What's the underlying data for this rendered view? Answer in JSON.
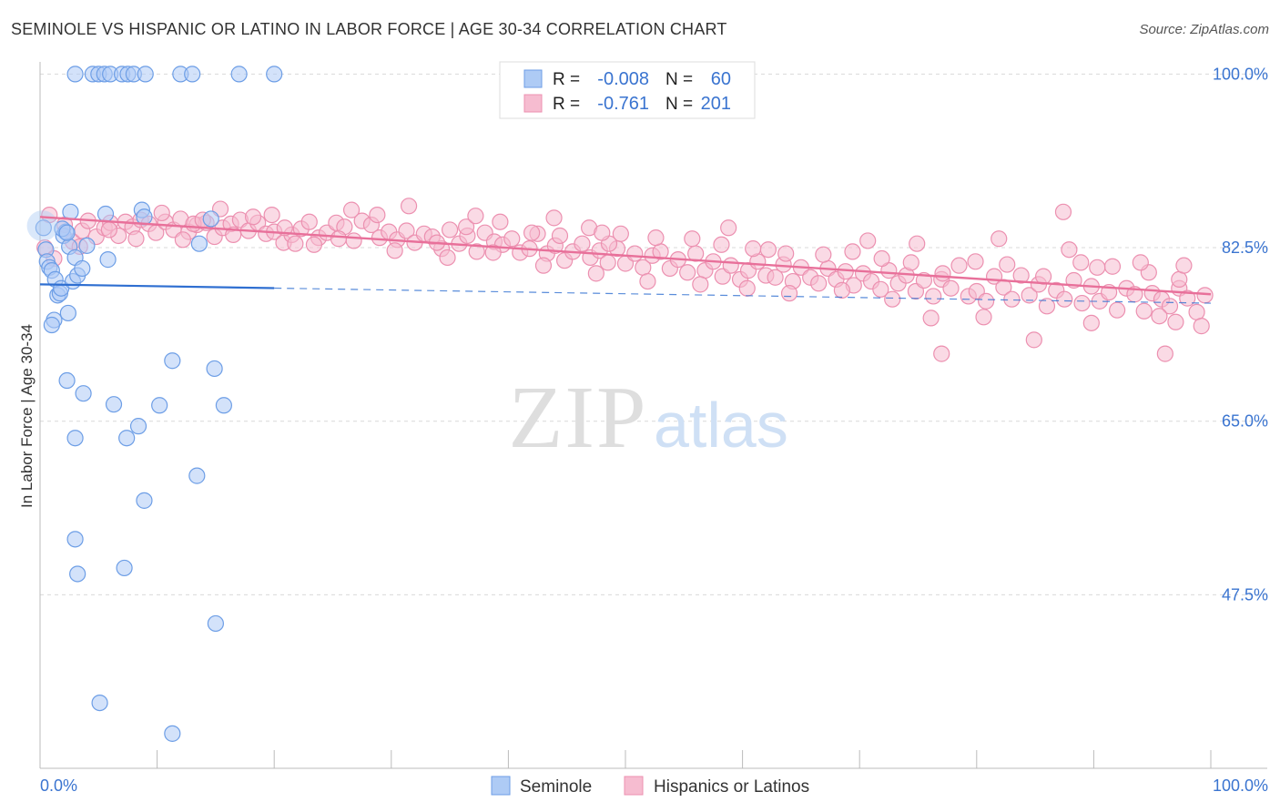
{
  "title": "SEMINOLE VS HISPANIC OR LATINO IN LABOR FORCE | AGE 30-34 CORRELATION CHART",
  "source": "Source: ZipAtlas.com",
  "watermark": {
    "left": "ZIP",
    "right": "atlas"
  },
  "colors": {
    "seminole_fill": "#aecbf5",
    "seminole_stroke": "#6d9ee6",
    "seminole_line": "#2f6fd1",
    "hispanic_fill": "#f6bcd0",
    "hispanic_stroke": "#ec90b0",
    "hispanic_line": "#e8709a",
    "tick_text": "#3a74d0",
    "grid": "#d9d9d9"
  },
  "legend": [
    {
      "r_label": "R =",
      "r_value": "-0.008",
      "n_label": "N =",
      "n_value": "60"
    },
    {
      "r_label": "R =",
      "r_value": "-0.761",
      "n_label": "N =",
      "n_value": "201"
    }
  ],
  "chart_data": {
    "type": "scatter",
    "title": "SEMINOLE VS HISPANIC OR LATINO IN LABOR FORCE | AGE 30-34 CORRELATION CHART",
    "xlabel": "",
    "ylabel": "In Labor Force | Age 30-34",
    "xlim": [
      0,
      100
    ],
    "ylim": [
      30,
      101
    ],
    "x_tick_labels": [
      "0.0%",
      "100.0%"
    ],
    "y_ticks": [
      47.5,
      65.0,
      82.5,
      100.0
    ],
    "y_tick_labels": [
      "47.5%",
      "65.0%",
      "82.5%",
      "100.0%"
    ],
    "grid": true,
    "legend_position": "bottom",
    "series": [
      {
        "name": "Seminole",
        "r": -0.008,
        "n": 60,
        "trend": {
          "x": [
            0,
            100
          ],
          "y": [
            78.8,
            76.9
          ],
          "solid_to_x": 20
        },
        "points": [
          [
            3,
            100
          ],
          [
            4.5,
            100
          ],
          [
            5,
            100
          ],
          [
            5.5,
            100
          ],
          [
            6,
            100
          ],
          [
            7,
            100
          ],
          [
            7.5,
            100
          ],
          [
            8,
            100
          ],
          [
            9,
            100
          ],
          [
            12,
            100
          ],
          [
            13,
            100
          ],
          [
            17,
            100
          ],
          [
            20,
            100
          ],
          [
            0.3,
            84.5
          ],
          [
            0.5,
            82.3
          ],
          [
            0.6,
            81.1
          ],
          [
            0.8,
            80.5
          ],
          [
            1,
            80.2
          ],
          [
            1.3,
            79.3
          ],
          [
            1.5,
            77.7
          ],
          [
            1.7,
            77.9
          ],
          [
            1.8,
            78.4
          ],
          [
            2,
            83.7
          ],
          [
            2.2,
            84.1
          ],
          [
            2.5,
            82.6
          ],
          [
            2.8,
            79.1
          ],
          [
            3,
            81.5
          ],
          [
            3.2,
            79.7
          ],
          [
            3.6,
            80.4
          ],
          [
            4,
            82.7
          ],
          [
            2.6,
            86.1
          ],
          [
            5.6,
            85.9
          ],
          [
            8.7,
            86.3
          ],
          [
            8.9,
            85.6
          ],
          [
            14.6,
            85.4
          ],
          [
            1.9,
            84.4
          ],
          [
            2.3,
            84.0
          ],
          [
            13.6,
            82.9
          ],
          [
            5.8,
            81.3
          ],
          [
            1.2,
            75.2
          ],
          [
            2.4,
            75.9
          ],
          [
            1.0,
            74.7
          ],
          [
            11.3,
            71.1
          ],
          [
            14.9,
            70.3
          ],
          [
            2.3,
            69.1
          ],
          [
            3.7,
            67.8
          ],
          [
            6.3,
            66.7
          ],
          [
            10.2,
            66.6
          ],
          [
            15.7,
            66.6
          ],
          [
            8.4,
            64.5
          ],
          [
            3.0,
            63.3
          ],
          [
            7.4,
            63.3
          ],
          [
            13.4,
            59.5
          ],
          [
            8.9,
            57.0
          ],
          [
            3.0,
            53.1
          ],
          [
            7.2,
            50.2
          ],
          [
            3.2,
            49.6
          ],
          [
            15.0,
            44.6
          ],
          [
            5.1,
            36.6
          ],
          [
            11.3,
            33.5
          ]
        ]
      },
      {
        "name": "Hispanics or Latinos",
        "r": -0.761,
        "n": 201,
        "trend": {
          "x": [
            0,
            100
          ],
          "y": [
            85.6,
            77.8
          ]
        },
        "points": [
          [
            0.4,
            82.5
          ],
          [
            1.2,
            81.4
          ],
          [
            2.1,
            84.8
          ],
          [
            2.8,
            83.1
          ],
          [
            3.6,
            84.2
          ],
          [
            4.1,
            85.2
          ],
          [
            4.8,
            83.6
          ],
          [
            5.5,
            84.5
          ],
          [
            6.0,
            85.0
          ],
          [
            6.7,
            83.7
          ],
          [
            7.3,
            85.1
          ],
          [
            7.9,
            84.6
          ],
          [
            8.6,
            85.3
          ],
          [
            9.3,
            84.9
          ],
          [
            9.9,
            84.0
          ],
          [
            10.7,
            85.1
          ],
          [
            11.4,
            84.3
          ],
          [
            12.0,
            85.4
          ],
          [
            12.7,
            84.1
          ],
          [
            13.4,
            84.8
          ],
          [
            14.2,
            85.0
          ],
          [
            14.9,
            83.6
          ],
          [
            15.6,
            84.5
          ],
          [
            16.3,
            84.9
          ],
          [
            17.1,
            85.3
          ],
          [
            17.8,
            84.2
          ],
          [
            18.6,
            85.0
          ],
          [
            19.3,
            83.9
          ],
          [
            20.0,
            84.1
          ],
          [
            20.8,
            83.0
          ],
          [
            21.5,
            83.8
          ],
          [
            22.3,
            84.4
          ],
          [
            23.0,
            85.1
          ],
          [
            23.8,
            83.5
          ],
          [
            24.5,
            84.0
          ],
          [
            25.3,
            85.0
          ],
          [
            26.0,
            84.6
          ],
          [
            26.8,
            83.2
          ],
          [
            27.5,
            85.2
          ],
          [
            28.3,
            84.8
          ],
          [
            29.0,
            83.5
          ],
          [
            29.8,
            84.1
          ],
          [
            30.5,
            83.3
          ],
          [
            31.3,
            84.2
          ],
          [
            32.0,
            83.0
          ],
          [
            32.8,
            83.9
          ],
          [
            33.5,
            83.6
          ],
          [
            34.3,
            82.4
          ],
          [
            35.0,
            84.3
          ],
          [
            35.8,
            82.9
          ],
          [
            36.5,
            83.7
          ],
          [
            37.3,
            82.1
          ],
          [
            38.0,
            84.0
          ],
          [
            38.8,
            83.1
          ],
          [
            39.5,
            82.8
          ],
          [
            40.3,
            83.4
          ],
          [
            41.0,
            82.0
          ],
          [
            41.8,
            82.4
          ],
          [
            42.5,
            83.9
          ],
          [
            43.3,
            81.9
          ],
          [
            44.0,
            82.7
          ],
          [
            44.8,
            81.2
          ],
          [
            45.5,
            82.1
          ],
          [
            46.3,
            82.9
          ],
          [
            47.0,
            81.5
          ],
          [
            47.8,
            82.2
          ],
          [
            48.5,
            81.0
          ],
          [
            49.3,
            82.4
          ],
          [
            50.0,
            80.9
          ],
          [
            50.8,
            81.9
          ],
          [
            51.5,
            80.5
          ],
          [
            52.3,
            81.7
          ],
          [
            53.0,
            82.1
          ],
          [
            53.8,
            80.4
          ],
          [
            54.5,
            81.3
          ],
          [
            55.3,
            80.0
          ],
          [
            56.0,
            81.9
          ],
          [
            56.8,
            80.2
          ],
          [
            57.5,
            81.1
          ],
          [
            58.3,
            79.6
          ],
          [
            59.0,
            80.7
          ],
          [
            59.8,
            79.3
          ],
          [
            60.5,
            80.2
          ],
          [
            61.3,
            81.1
          ],
          [
            62.0,
            79.7
          ],
          [
            62.8,
            79.5
          ],
          [
            63.5,
            80.8
          ],
          [
            64.3,
            79.1
          ],
          [
            65.0,
            80.5
          ],
          [
            65.8,
            79.5
          ],
          [
            66.5,
            78.9
          ],
          [
            67.3,
            80.4
          ],
          [
            68.0,
            79.3
          ],
          [
            68.8,
            80.1
          ],
          [
            69.5,
            78.7
          ],
          [
            70.3,
            79.9
          ],
          [
            71.0,
            79.1
          ],
          [
            71.8,
            78.3
          ],
          [
            72.5,
            80.2
          ],
          [
            73.3,
            78.9
          ],
          [
            74.0,
            79.7
          ],
          [
            74.8,
            78.1
          ],
          [
            75.5,
            79.2
          ],
          [
            76.3,
            77.6
          ],
          [
            77.0,
            79.3
          ],
          [
            77.8,
            78.4
          ],
          [
            78.5,
            80.7
          ],
          [
            79.3,
            77.6
          ],
          [
            80.0,
            78.1
          ],
          [
            80.8,
            77.1
          ],
          [
            81.5,
            79.6
          ],
          [
            82.3,
            78.5
          ],
          [
            83.0,
            77.3
          ],
          [
            83.8,
            79.7
          ],
          [
            84.5,
            77.7
          ],
          [
            85.3,
            78.8
          ],
          [
            86.0,
            76.6
          ],
          [
            86.8,
            78.2
          ],
          [
            87.5,
            77.3
          ],
          [
            88.3,
            79.2
          ],
          [
            89.0,
            76.9
          ],
          [
            89.8,
            78.6
          ],
          [
            90.5,
            77.1
          ],
          [
            91.3,
            78.0
          ],
          [
            92.0,
            76.2
          ],
          [
            92.8,
            78.4
          ],
          [
            93.5,
            77.8
          ],
          [
            94.3,
            76.1
          ],
          [
            95.0,
            77.9
          ],
          [
            95.8,
            77.3
          ],
          [
            96.5,
            76.6
          ],
          [
            97.3,
            78.4
          ],
          [
            98.0,
            77.4
          ],
          [
            98.8,
            76.0
          ],
          [
            99.5,
            77.7
          ],
          [
            99.2,
            74.6
          ],
          [
            0.8,
            85.8
          ],
          [
            3.4,
            82.6
          ],
          [
            5.9,
            84.3
          ],
          [
            8.2,
            83.4
          ],
          [
            10.4,
            86.0
          ],
          [
            13.1,
            84.9
          ],
          [
            15.4,
            86.4
          ],
          [
            18.2,
            85.6
          ],
          [
            20.9,
            84.5
          ],
          [
            23.4,
            82.8
          ],
          [
            26.6,
            86.3
          ],
          [
            28.8,
            85.8
          ],
          [
            31.5,
            86.7
          ],
          [
            33.9,
            83.0
          ],
          [
            36.4,
            84.6
          ],
          [
            39.3,
            85.1
          ],
          [
            42.0,
            84.0
          ],
          [
            44.4,
            83.7
          ],
          [
            46.9,
            84.5
          ],
          [
            49.6,
            83.9
          ],
          [
            52.6,
            83.5
          ],
          [
            55.7,
            83.4
          ],
          [
            58.2,
            82.8
          ],
          [
            60.9,
            82.4
          ],
          [
            63.7,
            81.9
          ],
          [
            66.9,
            81.8
          ],
          [
            69.4,
            82.1
          ],
          [
            71.9,
            81.4
          ],
          [
            74.4,
            81.0
          ],
          [
            77.1,
            79.9
          ],
          [
            79.9,
            81.1
          ],
          [
            82.6,
            80.8
          ],
          [
            85.7,
            79.6
          ],
          [
            88.9,
            81.0
          ],
          [
            91.6,
            80.6
          ],
          [
            94.7,
            80.0
          ],
          [
            97.3,
            79.3
          ],
          [
            12.2,
            83.3
          ],
          [
            16.5,
            83.8
          ],
          [
            21.8,
            82.9
          ],
          [
            25.5,
            83.4
          ],
          [
            30.3,
            82.2
          ],
          [
            34.8,
            81.5
          ],
          [
            38.7,
            82.0
          ],
          [
            43.0,
            80.7
          ],
          [
            47.5,
            79.9
          ],
          [
            51.9,
            79.1
          ],
          [
            56.4,
            78.8
          ],
          [
            60.4,
            78.4
          ],
          [
            64.0,
            77.9
          ],
          [
            68.5,
            78.2
          ],
          [
            72.8,
            77.3
          ],
          [
            76.1,
            75.4
          ],
          [
            80.6,
            75.5
          ],
          [
            84.9,
            73.2
          ],
          [
            89.8,
            74.9
          ],
          [
            95.6,
            75.6
          ],
          [
            97.0,
            75.0
          ],
          [
            77.0,
            71.8
          ],
          [
            96.1,
            71.8
          ],
          [
            87.4,
            86.1
          ],
          [
            48.6,
            82.9
          ],
          [
            58.8,
            84.5
          ],
          [
            62.2,
            82.3
          ],
          [
            70.7,
            83.2
          ],
          [
            74.9,
            82.9
          ],
          [
            81.9,
            83.4
          ],
          [
            87.9,
            82.3
          ],
          [
            90.3,
            80.5
          ],
          [
            94.0,
            81.0
          ],
          [
            97.7,
            80.7
          ],
          [
            13.9,
            85.3
          ],
          [
            19.8,
            85.8
          ],
          [
            37.2,
            85.7
          ],
          [
            43.9,
            85.5
          ],
          [
            48.0,
            84.0
          ]
        ]
      }
    ]
  },
  "axis_labels": {
    "x_left": "0.0%",
    "x_right": "100.0%",
    "y_ticks": [
      "47.5%",
      "65.0%",
      "82.5%",
      "100.0%"
    ]
  }
}
